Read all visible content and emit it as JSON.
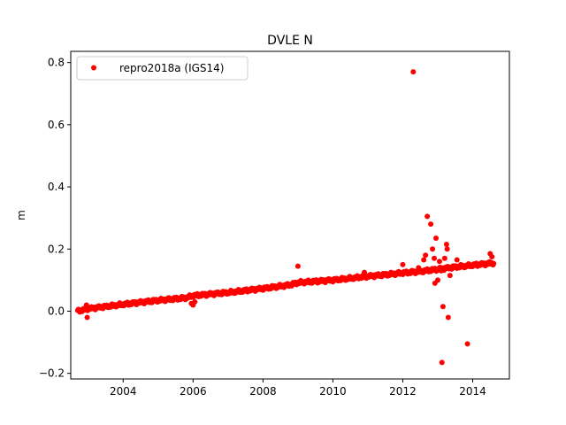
{
  "chart_data": {
    "type": "scatter",
    "title": "DVLE N",
    "xlabel": "",
    "ylabel": "m",
    "xlim": [
      2002.5,
      2015.05
    ],
    "ylim": [
      -0.218,
      0.836
    ],
    "xticks": [
      2004,
      2006,
      2008,
      2010,
      2012,
      2014
    ],
    "xtick_labels": [
      "2004",
      "2006",
      "2008",
      "2010",
      "2012",
      "2014"
    ],
    "yticks": [
      -0.2,
      0.0,
      0.2,
      0.4,
      0.6,
      0.8
    ],
    "ytick_labels": [
      "−0.2",
      "0.0",
      "0.2",
      "0.4",
      "0.6",
      "0.8"
    ],
    "grid": false,
    "legend_position": "top-left",
    "series": [
      {
        "name": "repro2018a (IGS14)",
        "color": "#ff0000",
        "marker": "circle",
        "trend": {
          "x": [
            2002.7,
            2003.0,
            2004.0,
            2005.0,
            2005.8,
            2006.0,
            2006.2,
            2007.0,
            2008.0,
            2008.8,
            2009.0,
            2010.0,
            2011.0,
            2012.0,
            2012.5,
            2013.0,
            2013.5,
            2014.0,
            2014.6
          ],
          "y": [
            0.0,
            0.008,
            0.022,
            0.035,
            0.043,
            0.05,
            0.052,
            0.06,
            0.073,
            0.085,
            0.092,
            0.1,
            0.112,
            0.123,
            0.128,
            0.135,
            0.142,
            0.148,
            0.155
          ]
        },
        "points": [
          {
            "x": 2002.95,
            "y": 0.02
          },
          {
            "x": 2002.97,
            "y": -0.02
          },
          {
            "x": 2005.95,
            "y": 0.025
          },
          {
            "x": 2006.0,
            "y": 0.02
          },
          {
            "x": 2006.05,
            "y": 0.03
          },
          {
            "x": 2009.0,
            "y": 0.145
          },
          {
            "x": 2010.9,
            "y": 0.125
          },
          {
            "x": 2012.0,
            "y": 0.15
          },
          {
            "x": 2012.3,
            "y": 0.77
          },
          {
            "x": 2012.45,
            "y": 0.14
          },
          {
            "x": 2012.6,
            "y": 0.165
          },
          {
            "x": 2012.65,
            "y": 0.18
          },
          {
            "x": 2012.7,
            "y": 0.305
          },
          {
            "x": 2012.8,
            "y": 0.28
          },
          {
            "x": 2012.85,
            "y": 0.2
          },
          {
            "x": 2012.9,
            "y": 0.17
          },
          {
            "x": 2012.92,
            "y": 0.09
          },
          {
            "x": 2012.95,
            "y": 0.235
          },
          {
            "x": 2013.0,
            "y": 0.1
          },
          {
            "x": 2013.05,
            "y": 0.16
          },
          {
            "x": 2013.1,
            "y": 0.13
          },
          {
            "x": 2013.12,
            "y": -0.165
          },
          {
            "x": 2013.15,
            "y": 0.015
          },
          {
            "x": 2013.2,
            "y": 0.17
          },
          {
            "x": 2013.25,
            "y": 0.215
          },
          {
            "x": 2013.27,
            "y": 0.2
          },
          {
            "x": 2013.3,
            "y": -0.02
          },
          {
            "x": 2013.35,
            "y": 0.115
          },
          {
            "x": 2013.55,
            "y": 0.165
          },
          {
            "x": 2013.85,
            "y": -0.105
          },
          {
            "x": 2014.5,
            "y": 0.185
          },
          {
            "x": 2014.55,
            "y": 0.175
          }
        ]
      }
    ]
  }
}
